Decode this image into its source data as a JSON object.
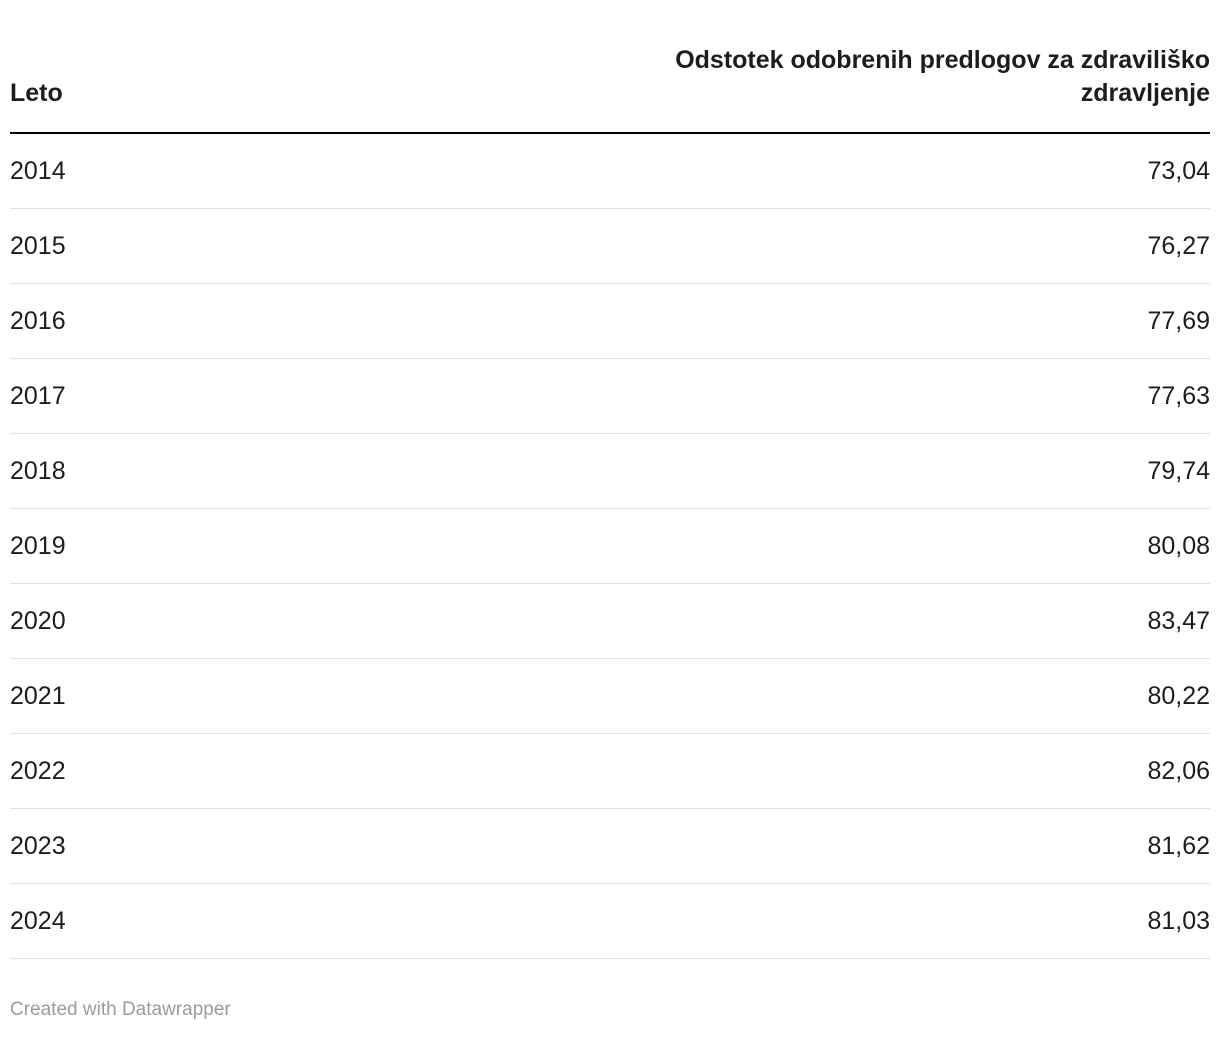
{
  "table": {
    "columns": [
      {
        "label": "Leto",
        "align": "left"
      },
      {
        "label": "Odstotek odobrenih predlogov za zdraviliško zdravljenje",
        "align": "right"
      }
    ],
    "rows": [
      {
        "year": "2014",
        "value": "73,04"
      },
      {
        "year": "2015",
        "value": "76,27"
      },
      {
        "year": "2016",
        "value": "77,69"
      },
      {
        "year": "2017",
        "value": "77,63"
      },
      {
        "year": "2018",
        "value": "79,74"
      },
      {
        "year": "2019",
        "value": "80,08"
      },
      {
        "year": "2020",
        "value": "83,47"
      },
      {
        "year": "2021",
        "value": "80,22"
      },
      {
        "year": "2022",
        "value": "82,06"
      },
      {
        "year": "2023",
        "value": "81,62"
      },
      {
        "year": "2024",
        "value": "81,03"
      }
    ]
  },
  "footer": {
    "credit": "Created with Datawrapper"
  },
  "colors": {
    "text": "#1d1d1d",
    "header_border": "#000000",
    "row_border": "#e3e3e3",
    "footer_text": "#9b9b9b",
    "background": "#ffffff"
  },
  "chart_data": {
    "type": "table",
    "title": "",
    "columns": [
      "Leto",
      "Odstotek odobrenih predlogov za zdraviliško zdravljenje"
    ],
    "rows": [
      [
        "2014",
        "73,04"
      ],
      [
        "2015",
        "76,27"
      ],
      [
        "2016",
        "77,69"
      ],
      [
        "2017",
        "77,63"
      ],
      [
        "2018",
        "79,74"
      ],
      [
        "2019",
        "80,08"
      ],
      [
        "2020",
        "83,47"
      ],
      [
        "2021",
        "80,22"
      ],
      [
        "2022",
        "82,06"
      ],
      [
        "2023",
        "81,62"
      ],
      [
        "2024",
        "81,03"
      ]
    ],
    "values_numeric": {
      "years": [
        2014,
        2015,
        2016,
        2017,
        2018,
        2019,
        2020,
        2021,
        2022,
        2023,
        2024
      ],
      "percent_approved": [
        73.04,
        76.27,
        77.69,
        77.63,
        79.74,
        80.08,
        83.47,
        80.22,
        82.06,
        81.62,
        81.03
      ]
    },
    "number_format": "decimal-comma",
    "legend_position": "none",
    "grid": "row-separators"
  }
}
